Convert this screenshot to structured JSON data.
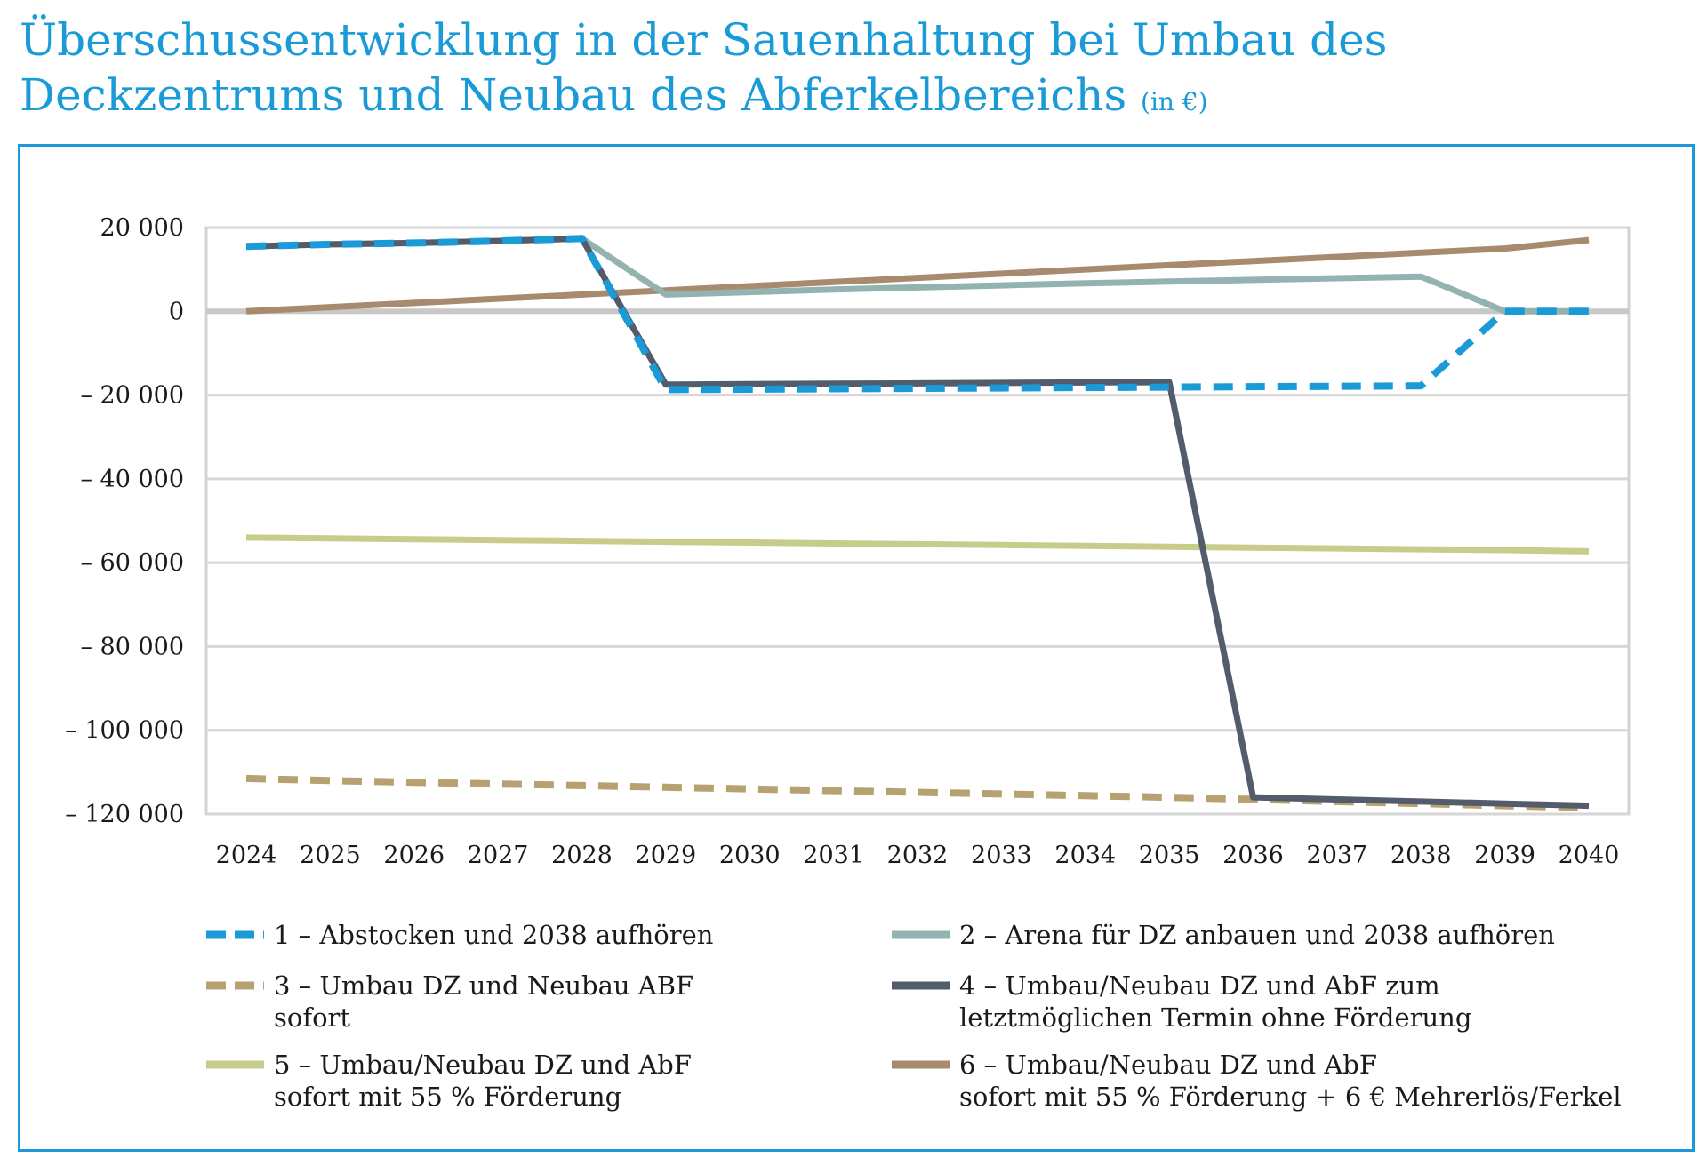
{
  "title": "Überschussentwicklung in der Sauenhaltung bei Umbau des Deckzentrums und Neubau des Abferkelbereichs",
  "unit": "(in €)",
  "chart_data": {
    "type": "line",
    "title": "Überschussentwicklung in der Sauenhaltung bei Umbau des Deckzentrums und Neubau des Abferkelbereichs",
    "xlabel": "",
    "ylabel": "",
    "ylim": [
      -120000,
      20000
    ],
    "yticks": [
      20000,
      0,
      -20000,
      -40000,
      -60000,
      -80000,
      -100000,
      -120000
    ],
    "ytick_labels": [
      "20 000",
      "0",
      "– 20 000",
      "– 40 000",
      "– 60 000",
      "– 80 000",
      "– 100 000",
      "– 120 000"
    ],
    "x": [
      "2024",
      "2025",
      "2026",
      "2027",
      "2028",
      "2029",
      "2030",
      "2031",
      "2032",
      "2033",
      "2034",
      "2035",
      "2036",
      "2037",
      "2038",
      "2039",
      "2040"
    ],
    "grid": true,
    "legend_position": "bottom",
    "series": [
      {
        "name": "1 – Abstocken und 2038 aufhören",
        "color": "#1a9bd7",
        "dashed": true,
        "values": [
          15500,
          16000,
          16300,
          16800,
          17400,
          -18700,
          -18600,
          -18500,
          -18400,
          -18300,
          -18200,
          -18100,
          -18000,
          -17900,
          -17800,
          0,
          0
        ]
      },
      {
        "name": "2 – Arena für DZ anbauen und 2038 aufhören",
        "color": "#93b3b0",
        "dashed": false,
        "values": [
          15500,
          16000,
          16300,
          16800,
          17400,
          4000,
          4600,
          5200,
          5700,
          6200,
          6700,
          7100,
          7500,
          7900,
          8300,
          0,
          0
        ]
      },
      {
        "name": "3 – Umbau DZ und Neubau ABF sofort",
        "color": "#b8a171",
        "dashed": true,
        "values": [
          -111500,
          -112000,
          -112400,
          -112800,
          -113200,
          -113600,
          -114000,
          -114400,
          -114800,
          -115200,
          -115600,
          -116000,
          -116500,
          -117000,
          -117500,
          -118000,
          -118500
        ]
      },
      {
        "name": "4 – Umbau/Neubau DZ und AbF zum letztmöglichen Termin ohne Förderung",
        "color": "#535c6b",
        "dashed": false,
        "values": [
          15500,
          16000,
          16300,
          16800,
          17400,
          -17500,
          -17400,
          -17300,
          -17200,
          -17100,
          -17000,
          -16900,
          -116000,
          -116500,
          -117000,
          -117500,
          -118000
        ]
      },
      {
        "name": "5 – Umbau/Neubau DZ und AbF sofort mit 55 % Förderung",
        "color": "#c8cc8a",
        "dashed": false,
        "values": [
          -54000,
          -54200,
          -54400,
          -54600,
          -54800,
          -55000,
          -55200,
          -55400,
          -55600,
          -55800,
          -56000,
          -56200,
          -56400,
          -56600,
          -56800,
          -57000,
          -57300
        ]
      },
      {
        "name": "6 – Umbau/Neubau DZ und AbF sofort mit 55 % Förderung + 6 € Mehrerlös/Ferkel",
        "color": "#a88a6f",
        "dashed": false,
        "values": [
          0,
          1000,
          2000,
          3000,
          4000,
          5000,
          6000,
          7000,
          8000,
          9000,
          10000,
          11000,
          12000,
          13000,
          14000,
          15000,
          17000
        ]
      }
    ],
    "legend": [
      {
        "series": 0,
        "lines": [
          "1 – Abstocken und 2038 aufhören"
        ]
      },
      {
        "series": 1,
        "lines": [
          "2 – Arena für DZ anbauen und 2038 aufhören"
        ]
      },
      {
        "series": 2,
        "lines": [
          "3 – Umbau DZ und Neubau ABF",
          "sofort"
        ]
      },
      {
        "series": 3,
        "lines": [
          "4 – Umbau/Neubau  DZ und AbF zum",
          "letztmöglichen Termin ohne Förderung"
        ]
      },
      {
        "series": 4,
        "lines": [
          "5 – Umbau/Neubau  DZ und AbF",
          "sofort mit 55 % Förderung"
        ]
      },
      {
        "series": 5,
        "lines": [
          "6 – Umbau/Neubau DZ und AbF",
          "sofort mit 55 % Förderung + 6 € Mehrerlös/Ferkel"
        ]
      }
    ]
  }
}
